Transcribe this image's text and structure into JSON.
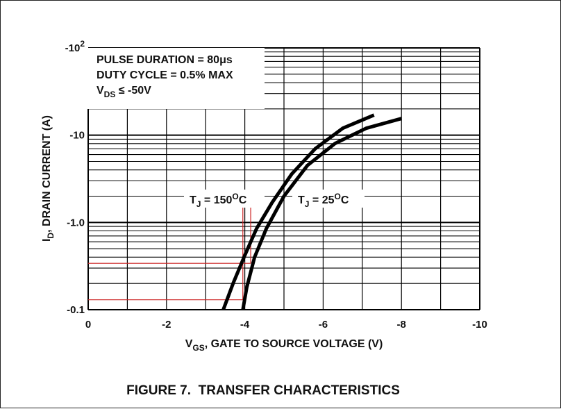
{
  "figure": {
    "caption": "FIGURE 7.  TRANSFER CHARACTERISTICS"
  },
  "chart_data": {
    "type": "line",
    "xlabel": {
      "main": "V",
      "sub": "GS",
      "rest": ", GATE TO SOURCE VOLTAGE (V)"
    },
    "ylabel": {
      "main": "I",
      "sub": "D",
      "rest": ", DRAIN CURRENT (A)"
    },
    "x_ticks": [
      {
        "value": 0,
        "label": "0"
      },
      {
        "value": -2,
        "label": "-2"
      },
      {
        "value": -4,
        "label": "-4"
      },
      {
        "value": -6,
        "label": "-6"
      },
      {
        "value": -8,
        "label": "-8"
      },
      {
        "value": -10,
        "label": "-10"
      }
    ],
    "y_ticks": [
      {
        "value": -0.1,
        "label": "-0.1",
        "sup": ""
      },
      {
        "value": -1,
        "label": "-1.0",
        "sup": ""
      },
      {
        "value": -10,
        "label": "-10",
        "sup": ""
      },
      {
        "value": -100,
        "label": "-10",
        "sup": "2"
      }
    ],
    "xlim": [
      0,
      -10
    ],
    "ylim": [
      -0.1,
      -100
    ],
    "y_scale": "log",
    "grid": true,
    "test_conditions": [
      {
        "main": "PULSE DURATION = 80μs",
        "sub": "",
        "rest": ""
      },
      {
        "main": "DUTY CYCLE = 0.5% MAX",
        "sub": "",
        "rest": ""
      },
      {
        "main": "V",
        "sub": "DS",
        "rest": " ≤ -50V"
      }
    ],
    "series": [
      {
        "name": "T_J = 150°C",
        "label": {
          "main": "T",
          "sub": "J",
          "rest": " = 150",
          "sup": "O",
          "unit": "C"
        },
        "color": "#000000",
        "x": [
          -3.45,
          -3.7,
          -4.0,
          -4.3,
          -4.7,
          -5.2,
          -5.8,
          -6.5,
          -7.3
        ],
        "y": [
          -0.1,
          -0.2,
          -0.42,
          -0.85,
          -1.7,
          -3.6,
          -7.0,
          -12.0,
          -17.0
        ]
      },
      {
        "name": "T_J = 25°C",
        "label": {
          "main": "T",
          "sub": "J",
          "rest": " = 25",
          "sup": "O",
          "unit": "C"
        },
        "color": "#000000",
        "x": [
          -3.95,
          -4.05,
          -4.25,
          -4.55,
          -5.0,
          -5.6,
          -6.3,
          -7.1,
          -8.0
        ],
        "y": [
          -0.1,
          -0.18,
          -0.4,
          -0.85,
          -2.0,
          -4.5,
          -8.0,
          -12.0,
          -15.5
        ]
      }
    ],
    "reference_lines": {
      "color": "#cc2222",
      "points": [
        {
          "x": -3.95,
          "y": -0.13
        },
        {
          "x": -4.15,
          "y": -0.34
        }
      ]
    }
  }
}
